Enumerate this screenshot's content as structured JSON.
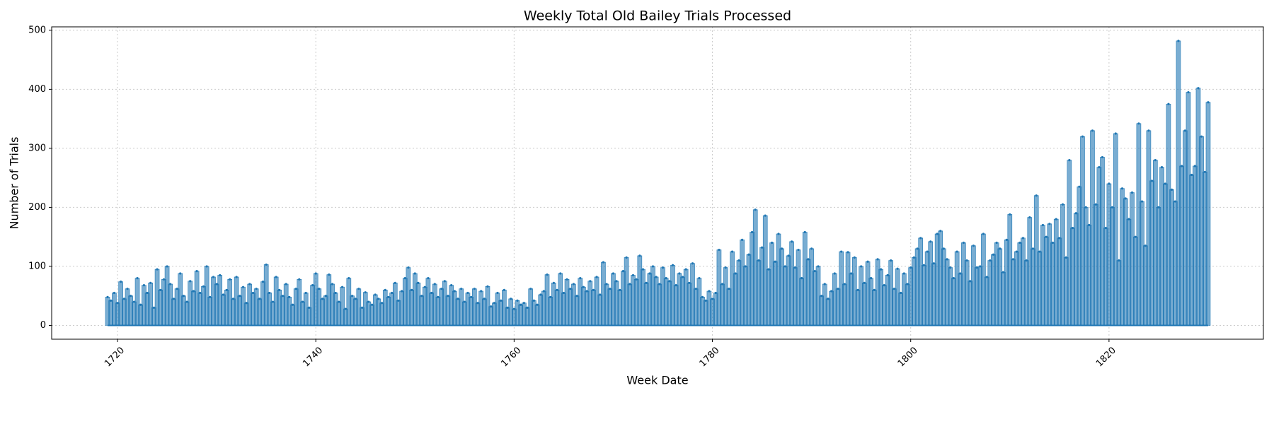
{
  "chart_data": {
    "type": "stem",
    "title": "Weekly Total Old Bailey Trials Processed",
    "x_label": "Week Date",
    "y_label": "Number of Trials",
    "xlim": [
      1713.36,
      1835.57
    ],
    "ylim": [
      -23.4,
      505.8
    ],
    "xticks": [
      1720,
      1740,
      1760,
      1780,
      1800,
      1820
    ],
    "yticks": [
      0,
      100,
      200,
      300,
      400,
      500
    ],
    "grid": true,
    "series": [
      {
        "color": "#1f77b4",
        "x": [
          1719,
          1719.33,
          1719.67,
          1720,
          1720.33,
          1720.67,
          1721,
          1721.33,
          1721.67,
          1722,
          1722.33,
          1722.67,
          1723,
          1723.33,
          1723.67,
          1724,
          1724.33,
          1724.67,
          1725,
          1725.33,
          1725.67,
          1726,
          1726.33,
          1726.67,
          1727,
          1727.33,
          1727.67,
          1728,
          1728.33,
          1728.67,
          1729,
          1729.33,
          1729.67,
          1730,
          1730.33,
          1730.67,
          1731,
          1731.33,
          1731.67,
          1732,
          1732.33,
          1732.67,
          1733,
          1733.33,
          1733.67,
          1734,
          1734.33,
          1734.67,
          1735,
          1735.33,
          1735.67,
          1736,
          1736.33,
          1736.67,
          1737,
          1737.33,
          1737.67,
          1738,
          1738.33,
          1738.67,
          1739,
          1739.33,
          1739.67,
          1740,
          1740.33,
          1740.67,
          1741,
          1741.33,
          1741.67,
          1742,
          1742.33,
          1742.67,
          1743,
          1743.33,
          1743.67,
          1744,
          1744.33,
          1744.67,
          1745,
          1745.33,
          1745.67,
          1746,
          1746.33,
          1746.67,
          1747,
          1747.33,
          1747.67,
          1748,
          1748.33,
          1748.67,
          1749,
          1749.33,
          1749.67,
          1750,
          1750.33,
          1750.67,
          1751,
          1751.33,
          1751.67,
          1752,
          1752.33,
          1752.67,
          1753,
          1753.33,
          1753.67,
          1754,
          1754.33,
          1754.67,
          1755,
          1755.33,
          1755.67,
          1756,
          1756.33,
          1756.67,
          1757,
          1757.33,
          1757.67,
          1758,
          1758.33,
          1758.67,
          1759,
          1759.33,
          1759.67,
          1760,
          1760.33,
          1760.67,
          1761,
          1761.33,
          1761.67,
          1762,
          1762.33,
          1762.67,
          1763,
          1763.33,
          1763.67,
          1764,
          1764.33,
          1764.67,
          1765,
          1765.33,
          1765.67,
          1766,
          1766.33,
          1766.67,
          1767,
          1767.33,
          1767.67,
          1768,
          1768.33,
          1768.67,
          1769,
          1769.33,
          1769.67,
          1770,
          1770.33,
          1770.67,
          1771,
          1771.33,
          1771.67,
          1772,
          1772.33,
          1772.67,
          1773,
          1773.33,
          1773.67,
          1774,
          1774.33,
          1774.67,
          1775,
          1775.33,
          1775.67,
          1776,
          1776.33,
          1776.67,
          1777,
          1777.33,
          1777.67,
          1778,
          1778.33,
          1778.67,
          1779,
          1779.33,
          1779.67,
          1780,
          1780.33,
          1780.67,
          1781,
          1781.33,
          1781.67,
          1782,
          1782.33,
          1782.67,
          1783,
          1783.33,
          1783.67,
          1784,
          1784.33,
          1784.67,
          1785,
          1785.33,
          1785.67,
          1786,
          1786.33,
          1786.67,
          1787,
          1787.33,
          1787.67,
          1788,
          1788.33,
          1788.67,
          1789,
          1789.33,
          1789.67,
          1790,
          1790.33,
          1790.67,
          1791,
          1791.33,
          1791.67,
          1792,
          1792.33,
          1792.67,
          1793,
          1793.33,
          1793.67,
          1794,
          1794.33,
          1794.67,
          1795,
          1795.33,
          1795.67,
          1796,
          1796.33,
          1796.67,
          1797,
          1797.33,
          1797.67,
          1798,
          1798.33,
          1798.67,
          1799,
          1799.33,
          1799.67,
          1800,
          1800.33,
          1800.67,
          1801,
          1801.33,
          1801.67,
          1802,
          1802.33,
          1802.67,
          1803,
          1803.33,
          1803.67,
          1804,
          1804.33,
          1804.67,
          1805,
          1805.33,
          1805.67,
          1806,
          1806.33,
          1806.67,
          1807,
          1807.33,
          1807.67,
          1808,
          1808.33,
          1808.67,
          1809,
          1809.33,
          1809.67,
          1810,
          1810.33,
          1810.67,
          1811,
          1811.33,
          1811.67,
          1812,
          1812.33,
          1812.67,
          1813,
          1813.33,
          1813.67,
          1814,
          1814.33,
          1814.67,
          1815,
          1815.33,
          1815.67,
          1816,
          1816.33,
          1816.67,
          1817,
          1817.33,
          1817.67,
          1818,
          1818.33,
          1818.67,
          1819,
          1819.33,
          1819.67,
          1820,
          1820.33,
          1820.67,
          1821,
          1821.33,
          1821.67,
          1822,
          1822.33,
          1822.67,
          1823,
          1823.33,
          1823.67,
          1824,
          1824.33,
          1824.67,
          1825,
          1825.33,
          1825.67,
          1826,
          1826.33,
          1826.67,
          1827,
          1827.33,
          1827.67,
          1828,
          1828.33,
          1828.67,
          1829,
          1829.33,
          1829.67,
          1830
        ],
        "values": [
          48,
          42,
          55,
          38,
          74,
          45,
          62,
          50,
          40,
          80,
          35,
          68,
          55,
          72,
          30,
          95,
          60,
          78,
          100,
          70,
          45,
          62,
          88,
          50,
          40,
          75,
          58,
          92,
          55,
          66,
          100,
          48,
          82,
          70,
          85,
          52,
          60,
          78,
          45,
          82,
          50,
          65,
          38,
          70,
          55,
          62,
          45,
          74,
          103,
          55,
          40,
          82,
          60,
          50,
          70,
          48,
          35,
          62,
          78,
          40,
          55,
          30,
          68,
          88,
          62,
          45,
          50,
          86,
          70,
          55,
          40,
          65,
          28,
          80,
          50,
          45,
          62,
          30,
          56,
          40,
          35,
          52,
          45,
          38,
          60,
          48,
          55,
          72,
          42,
          58,
          80,
          98,
          60,
          88,
          72,
          50,
          65,
          80,
          55,
          70,
          48,
          62,
          75,
          50,
          68,
          58,
          45,
          62,
          40,
          55,
          48,
          62,
          38,
          58,
          45,
          66,
          32,
          38,
          55,
          42,
          60,
          30,
          45,
          28,
          42,
          35,
          38,
          30,
          62,
          42,
          35,
          52,
          58,
          86,
          48,
          72,
          60,
          88,
          55,
          78,
          62,
          70,
          50,
          80,
          65,
          58,
          75,
          60,
          82,
          52,
          107,
          70,
          62,
          88,
          75,
          60,
          92,
          115,
          70,
          85,
          78,
          118,
          95,
          72,
          88,
          100,
          82,
          70,
          98,
          80,
          75,
          102,
          68,
          88,
          82,
          95,
          72,
          105,
          62,
          80,
          48,
          42,
          58,
          45,
          55,
          128,
          70,
          98,
          62,
          125,
          88,
          110,
          145,
          100,
          120,
          158,
          196,
          110,
          132,
          186,
          95,
          140,
          108,
          155,
          130,
          100,
          118,
          142,
          98,
          128,
          80,
          158,
          112,
          130,
          92,
          100,
          50,
          70,
          45,
          58,
          88,
          62,
          125,
          70,
          124,
          88,
          115,
          60,
          100,
          72,
          108,
          80,
          60,
          112,
          95,
          68,
          85,
          110,
          62,
          96,
          55,
          88,
          70,
          98,
          115,
          130,
          148,
          102,
          125,
          142,
          105,
          155,
          160,
          130,
          112,
          98,
          80,
          125,
          88,
          140,
          110,
          75,
          135,
          98,
          100,
          155,
          82,
          110,
          120,
          140,
          130,
          90,
          145,
          188,
          112,
          125,
          140,
          148,
          110,
          183,
          130,
          220,
          125,
          170,
          150,
          172,
          140,
          180,
          148,
          205,
          115,
          280,
          165,
          190,
          235,
          320,
          200,
          170,
          330,
          205,
          268,
          285,
          165,
          240,
          200,
          325,
          110,
          232,
          215,
          180,
          225,
          150,
          342,
          210,
          135,
          330,
          245,
          280,
          200,
          268,
          240,
          375,
          230,
          210,
          482,
          270,
          330,
          395,
          255,
          270,
          402,
          320,
          260,
          378
        ]
      }
    ]
  }
}
